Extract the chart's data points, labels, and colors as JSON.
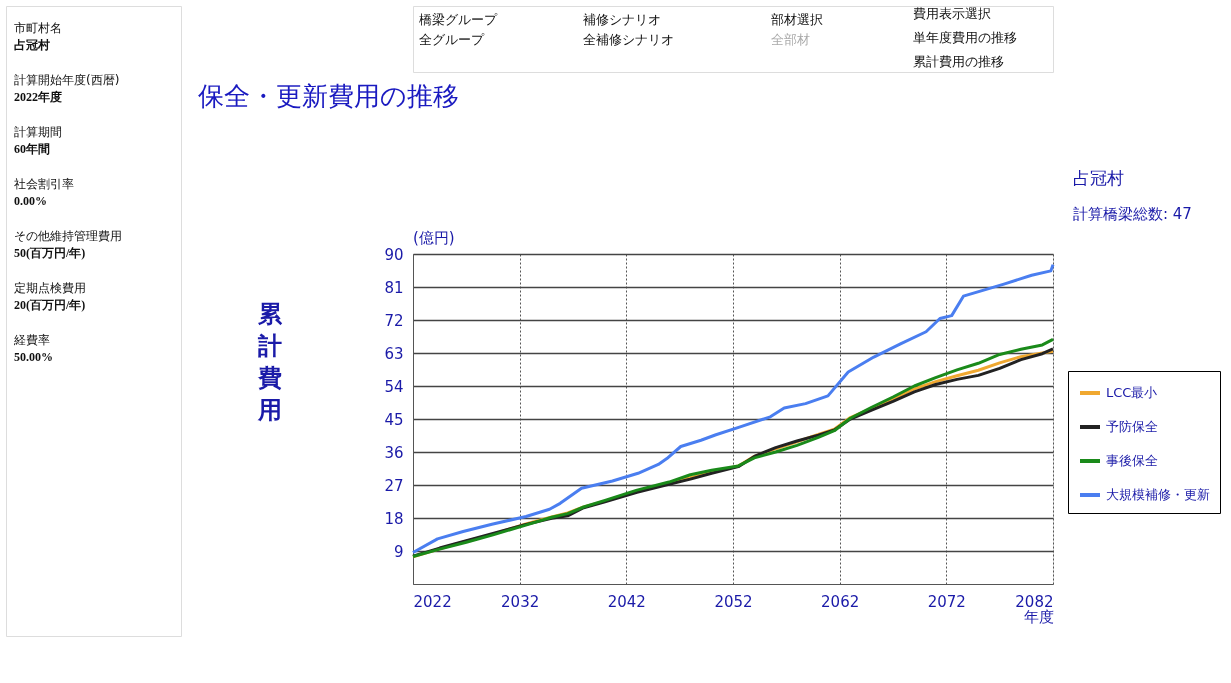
{
  "chart_data": [
    {
      "type": "other",
      "annotations": [
        "市町村名",
        "占冠村",
        "計算開始年度(西暦)",
        "2022年度",
        "計算期間",
        "60年間",
        "社会割引率",
        "0.00%",
        "その他維持管理費用",
        "50(百万円/年)",
        "定期点検費用",
        "20(百万円/年)",
        "経費率",
        "50.00%"
      ]
    },
    {
      "type": "other",
      "annotations": [
        "橋梁グループ",
        "全グループ",
        "補修シナリオ",
        "全補修シナリオ",
        "部材選択",
        "全部材",
        "費用表示選択",
        "単年度費用の推移",
        "累計費用の推移"
      ]
    },
    {
      "type": "line",
      "title": "保全・更新費用の推移",
      "xlabel": "年度",
      "ylabel": "累計費用",
      "annotations": [
        "(億円)",
        "占冠村",
        "計算橋梁総数: 47"
      ],
      "xlim": [
        2022,
        2082
      ],
      "xticks": [
        2022,
        2032,
        2042,
        2052,
        2062,
        2072,
        2082
      ],
      "ylim": [
        0,
        90
      ],
      "yticks": [
        9,
        18,
        27,
        36,
        45,
        54,
        63,
        72,
        81,
        90
      ],
      "grid": true,
      "legend": "right",
      "marker": "none",
      "line_style": "solid",
      "series": [
        {
          "name": "LCC最小",
          "color": "#f0a830",
          "x": [
            2022,
            2024.5,
            2027,
            2029.5,
            2032.5,
            2035,
            2036.5,
            2038,
            2040,
            2043,
            2046,
            2048,
            2050,
            2052.5,
            2054,
            2056,
            2058,
            2060,
            2061.5,
            2063,
            2065,
            2067,
            2069,
            2071,
            2073,
            2075,
            2077,
            2079,
            2081,
            2082
          ],
          "values": [
            7.4,
            9.6,
            11.7,
            13.6,
            16.3,
            18.3,
            19.4,
            21.0,
            22.6,
            25.3,
            27.4,
            29.0,
            30.5,
            32.2,
            34.8,
            36.9,
            38.8,
            40.8,
            42.2,
            45.4,
            47.9,
            50.5,
            53.2,
            55.2,
            56.8,
            58.3,
            60.3,
            62.0,
            63.0,
            63.5
          ]
        },
        {
          "name": "予防保全",
          "color": "#222222",
          "x": [
            2022,
            2024.5,
            2027,
            2029.5,
            2032.5,
            2035,
            2036.5,
            2038,
            2040,
            2043,
            2046,
            2048,
            2050,
            2052.5,
            2054,
            2056,
            2058,
            2060,
            2061.5,
            2063,
            2065,
            2067,
            2069,
            2071,
            2073,
            2075,
            2077,
            2079,
            2081,
            2082
          ],
          "values": [
            7.6,
            9.8,
            11.8,
            13.8,
            16.2,
            17.9,
            18.6,
            20.8,
            22.4,
            25.0,
            27.2,
            28.6,
            30.2,
            32.0,
            34.8,
            37.2,
            39.0,
            40.6,
            42.0,
            45.0,
            47.4,
            49.8,
            52.4,
            54.4,
            55.8,
            56.9,
            58.8,
            61.2,
            62.8,
            64.1
          ]
        },
        {
          "name": "事後保全",
          "color": "#1a8a1a",
          "x": [
            2022,
            2024.5,
            2027,
            2029.5,
            2032.5,
            2035,
            2036.5,
            2038,
            2040,
            2043,
            2046,
            2048,
            2050,
            2052.5,
            2054,
            2056,
            2058,
            2060,
            2061.5,
            2063,
            2065,
            2067,
            2069,
            2071,
            2073,
            2075,
            2077,
            2079,
            2081,
            2082
          ],
          "values": [
            7.5,
            9.5,
            11.4,
            13.4,
            16.0,
            18.2,
            19.2,
            21.0,
            22.8,
            25.6,
            27.8,
            29.8,
            31.0,
            32.2,
            34.4,
            36.0,
            37.8,
            40.0,
            41.8,
            45.2,
            48.2,
            51.0,
            54.0,
            56.3,
            58.4,
            60.2,
            62.6,
            64.0,
            65.2,
            66.7
          ]
        },
        {
          "name": "大規模補修・更新",
          "color": "#4a7ef0",
          "x": [
            2022,
            2024.3,
            2026.7,
            2029.4,
            2032.6,
            2034.8,
            2035.8,
            2037.8,
            2040.7,
            2043.1,
            2045,
            2045.8,
            2047.1,
            2049,
            2050.4,
            2052.6,
            2055.5,
            2056.8,
            2058.8,
            2060.9,
            2062.8,
            2065.2,
            2067.7,
            2070.1,
            2071.4,
            2072.5,
            2073.6,
            2077.4,
            2080,
            2081.8,
            2082
          ],
          "values": [
            8.6,
            12.3,
            14.3,
            16.3,
            18.4,
            20.4,
            22.0,
            26.1,
            28.1,
            30.2,
            32.6,
            34.2,
            37.5,
            39.2,
            40.7,
            42.8,
            45.6,
            48.0,
            49.2,
            51.3,
            57.8,
            61.9,
            65.5,
            68.8,
            72.4,
            73.2,
            78.5,
            81.8,
            84.2,
            85.4,
            87.1
          ]
        }
      ]
    }
  ]
}
